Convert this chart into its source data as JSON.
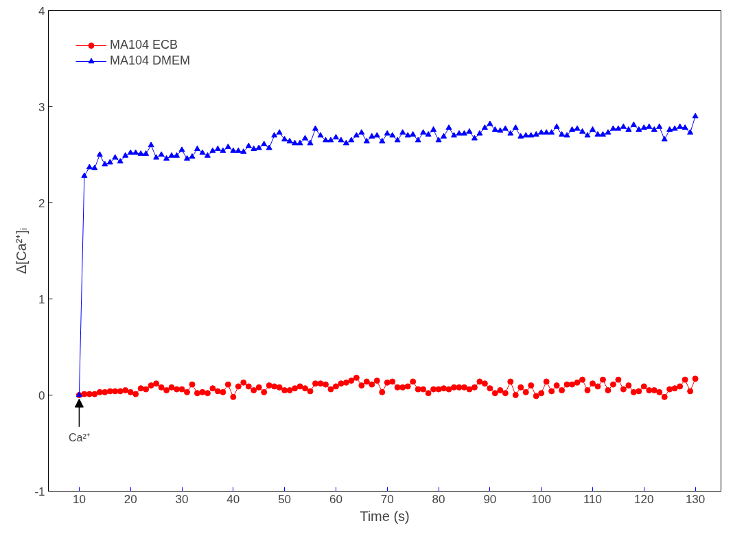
{
  "chart_data": {
    "type": "line",
    "xlabel": "Time (s)",
    "ylabel": "Δ[Ca²⁺]ᵢ",
    "x": [
      10,
      11,
      12,
      13,
      14,
      15,
      16,
      17,
      18,
      19,
      20,
      21,
      22,
      23,
      24,
      25,
      26,
      27,
      28,
      29,
      30,
      31,
      32,
      33,
      34,
      35,
      36,
      37,
      38,
      39,
      40,
      41,
      42,
      43,
      44,
      45,
      46,
      47,
      48,
      49,
      50,
      51,
      52,
      53,
      54,
      55,
      56,
      57,
      58,
      59,
      60,
      61,
      62,
      63,
      64,
      65,
      66,
      67,
      68,
      69,
      70,
      71,
      72,
      73,
      74,
      75,
      76,
      77,
      78,
      79,
      80,
      81,
      82,
      83,
      84,
      85,
      86,
      87,
      88,
      89,
      90,
      91,
      92,
      93,
      94,
      95,
      96,
      97,
      98,
      99,
      100,
      101,
      102,
      103,
      104,
      105,
      106,
      107,
      108,
      109,
      110,
      111,
      112,
      113,
      114,
      115,
      116,
      117,
      118,
      119,
      120,
      121,
      122,
      123,
      124,
      125,
      126,
      127,
      128,
      129,
      130
    ],
    "series": [
      {
        "name": "MA104 ECB",
        "color": "#ff0000",
        "marker": "circle",
        "values": [
          0,
          0.01,
          0.01,
          0.01,
          0.03,
          0.03,
          0.04,
          0.04,
          0.04,
          0.05,
          0.03,
          0.01,
          0.07,
          0.06,
          0.1,
          0.12,
          0.08,
          0.05,
          0.08,
          0.06,
          0.06,
          0.03,
          0.11,
          0.02,
          0.03,
          0.02,
          0.07,
          0.04,
          0.03,
          0.11,
          -0.02,
          0.09,
          0.13,
          0.09,
          0.05,
          0.08,
          0.03,
          0.1,
          0.09,
          0.08,
          0.05,
          0.05,
          0.07,
          0.09,
          0.07,
          0.04,
          0.12,
          0.12,
          0.11,
          0.06,
          0.09,
          0.12,
          0.13,
          0.15,
          0.18,
          0.1,
          0.14,
          0.11,
          0.15,
          0.03,
          0.13,
          0.14,
          0.08,
          0.08,
          0.09,
          0.14,
          0.06,
          0.06,
          0.02,
          0.06,
          0.06,
          0.07,
          0.06,
          0.08,
          0.08,
          0.08,
          0.06,
          0.08,
          0.14,
          0.12,
          0.07,
          0.02,
          0.05,
          0.02,
          0.14,
          0.0,
          0.08,
          0.03,
          0.1,
          -0.01,
          0.02,
          0.14,
          0.04,
          0.1,
          0.05,
          0.11,
          0.11,
          0.13,
          0.16,
          0.05,
          0.12,
          0.09,
          0.16,
          0.05,
          0.11,
          0.16,
          0.06,
          0.1,
          0.03,
          0.04,
          0.09,
          0.05,
          0.05,
          0.03,
          -0.02,
          0.06,
          0.07,
          0.09,
          0.16,
          0.04,
          0.17
        ]
      },
      {
        "name": "MA104 DMEM",
        "color": "#0000ff",
        "marker": "triangle",
        "values": [
          0,
          2.28,
          2.37,
          2.36,
          2.5,
          2.4,
          2.42,
          2.47,
          2.43,
          2.49,
          2.52,
          2.52,
          2.51,
          2.51,
          2.6,
          2.47,
          2.5,
          2.46,
          2.49,
          2.49,
          2.55,
          2.46,
          2.48,
          2.56,
          2.52,
          2.49,
          2.54,
          2.56,
          2.54,
          2.58,
          2.54,
          2.54,
          2.53,
          2.59,
          2.56,
          2.57,
          2.61,
          2.57,
          2.7,
          2.73,
          2.66,
          2.64,
          2.62,
          2.62,
          2.67,
          2.62,
          2.77,
          2.7,
          2.65,
          2.65,
          2.68,
          2.65,
          2.62,
          2.65,
          2.7,
          2.73,
          2.64,
          2.69,
          2.7,
          2.64,
          2.72,
          2.7,
          2.65,
          2.73,
          2.7,
          2.71,
          2.65,
          2.73,
          2.71,
          2.76,
          2.65,
          2.69,
          2.78,
          2.7,
          2.72,
          2.72,
          2.74,
          2.67,
          2.72,
          2.78,
          2.82,
          2.76,
          2.75,
          2.77,
          2.72,
          2.78,
          2.69,
          2.7,
          2.7,
          2.71,
          2.73,
          2.73,
          2.73,
          2.79,
          2.71,
          2.7,
          2.76,
          2.77,
          2.74,
          2.7,
          2.76,
          2.71,
          2.71,
          2.73,
          2.77,
          2.77,
          2.79,
          2.76,
          2.81,
          2.76,
          2.78,
          2.79,
          2.76,
          2.79,
          2.66,
          2.76,
          2.77,
          2.79,
          2.78,
          2.73,
          2.9
        ]
      }
    ],
    "annotations": [
      {
        "text": "Ca²⁺",
        "x": 10,
        "y": 0
      }
    ],
    "xlim": [
      4,
      135
    ],
    "ylim": [
      -1,
      4
    ],
    "xticks": [
      10,
      20,
      30,
      40,
      50,
      60,
      70,
      80,
      90,
      100,
      110,
      120,
      130
    ],
    "yticks": [
      -1,
      0,
      1,
      2,
      3,
      4
    ],
    "grid": false,
    "legend": "top left"
  }
}
